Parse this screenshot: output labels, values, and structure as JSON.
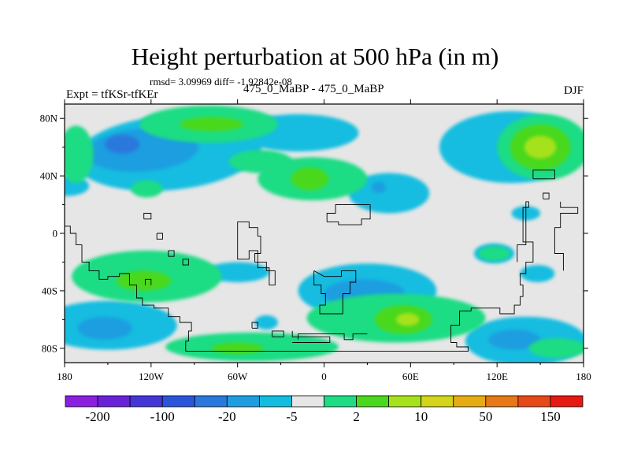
{
  "chart_data": {
    "type": "heatmap",
    "title": "Height perturbation at 500 hPa (in m)",
    "subtitle": "rmsd= 3.09969 diff= -1.92842e-08",
    "left_label": "Expt = tfKSr-tfKEr",
    "center_label": "475_0_MaBP - 475_0_MaBP",
    "right_label": "DJF",
    "xlim": [
      -180,
      180
    ],
    "ylim": [
      -90,
      90
    ],
    "x_ticks": [
      {
        "value": -180,
        "label": "180"
      },
      {
        "value": -120,
        "label": "120W"
      },
      {
        "value": -60,
        "label": "60W"
      },
      {
        "value": 0,
        "label": "0"
      },
      {
        "value": 60,
        "label": "60E"
      },
      {
        "value": 120,
        "label": "120E"
      },
      {
        "value": 180,
        "label": "180"
      }
    ],
    "y_ticks": [
      {
        "value": 80,
        "label": "80N"
      },
      {
        "value": 40,
        "label": "40N"
      },
      {
        "value": 0,
        "label": "0"
      },
      {
        "value": -40,
        "label": "40S"
      },
      {
        "value": -80,
        "label": "80S"
      }
    ],
    "colorbar": {
      "colors": [
        "#8a1fe0",
        "#6a22d8",
        "#4436d6",
        "#2a55da",
        "#2a78dc",
        "#1e9ee0",
        "#12bde0",
        "#e6e6e6",
        "#1fdc84",
        "#4ad81e",
        "#a6e21c",
        "#d4d41a",
        "#e6ac14",
        "#e67818",
        "#e64818",
        "#e61a10"
      ],
      "labels": [
        {
          "boundary": 1,
          "text": "-200"
        },
        {
          "boundary": 3,
          "text": "-100"
        },
        {
          "boundary": 5,
          "text": "-20"
        },
        {
          "boundary": 7,
          "text": "-5"
        },
        {
          "boundary": 9,
          "text": "2"
        },
        {
          "boundary": 11,
          "text": "10"
        },
        {
          "boundary": 13,
          "text": "50"
        },
        {
          "boundary": 15,
          "text": "150"
        }
      ]
    },
    "regions": [
      {
        "level": "-5",
        "color": "#12bde0",
        "lon": -108,
        "lat": 56,
        "width": 130,
        "height": 52,
        "rotate": -5
      },
      {
        "level": "-20",
        "color": "#1e9ee0",
        "lon": -126,
        "lat": 58,
        "width": 78,
        "height": 30,
        "rotate": -4
      },
      {
        "level": "-100",
        "color": "#2a78dc",
        "lon": -140,
        "lat": 62,
        "width": 24,
        "height": 13,
        "rotate": 0
      },
      {
        "level": "-5",
        "color": "#12bde0",
        "lon": -18,
        "lat": 70,
        "width": 84,
        "height": 26,
        "rotate": 0
      },
      {
        "level": "-5",
        "color": "#12bde0",
        "lon": 130,
        "lat": 60,
        "width": 100,
        "height": 50,
        "rotate": 0
      },
      {
        "level": "-5",
        "color": "#12bde0",
        "lon": -178,
        "lat": 33,
        "width": 30,
        "height": 14,
        "rotate": 0
      },
      {
        "level": "-5",
        "color": "#12bde0",
        "lon": 45,
        "lat": 28,
        "width": 56,
        "height": 28,
        "rotate": 0
      },
      {
        "level": "-20",
        "color": "#1e9ee0",
        "lon": 38,
        "lat": 32,
        "width": 10,
        "height": 8,
        "rotate": 0
      },
      {
        "level": "-5",
        "color": "#12bde0",
        "lon": 118,
        "lat": -14,
        "width": 28,
        "height": 14,
        "rotate": 0
      },
      {
        "level": "-5",
        "color": "#12bde0",
        "lon": 140,
        "lat": 14,
        "width": 20,
        "height": 10,
        "rotate": 0
      },
      {
        "level": "-5",
        "color": "#12bde0",
        "lon": 30,
        "lat": -40,
        "width": 96,
        "height": 38,
        "rotate": 0
      },
      {
        "level": "-20",
        "color": "#1e9ee0",
        "lon": 28,
        "lat": -42,
        "width": 56,
        "height": 20,
        "rotate": 0
      },
      {
        "level": "-5",
        "color": "#12bde0",
        "lon": -60,
        "lat": -27,
        "width": 44,
        "height": 14,
        "rotate": 0
      },
      {
        "level": "-5",
        "color": "#12bde0",
        "lon": 148,
        "lat": -28,
        "width": 24,
        "height": 12,
        "rotate": 0
      },
      {
        "level": "-5",
        "color": "#12bde0",
        "lon": -150,
        "lat": -64,
        "width": 96,
        "height": 34,
        "rotate": 0
      },
      {
        "level": "-20",
        "color": "#1e9ee0",
        "lon": -152,
        "lat": -66,
        "width": 38,
        "height": 16,
        "rotate": 0
      },
      {
        "level": "-5",
        "color": "#12bde0",
        "lon": 140,
        "lat": -75,
        "width": 84,
        "height": 34,
        "rotate": 0
      },
      {
        "level": "-20",
        "color": "#1e9ee0",
        "lon": 132,
        "lat": -74,
        "width": 36,
        "height": 14,
        "rotate": 0
      },
      {
        "level": "-5",
        "color": "#12bde0",
        "lon": -40,
        "lat": -62,
        "width": 16,
        "height": 10,
        "rotate": 0
      },
      {
        "level": "2",
        "color": "#1fdc84",
        "lon": -80,
        "lat": 76,
        "width": 96,
        "height": 26,
        "rotate": 0
      },
      {
        "level": "10",
        "color": "#4ad81e",
        "lon": -78,
        "lat": 76,
        "width": 44,
        "height": 10,
        "rotate": 0
      },
      {
        "level": "2",
        "color": "#1fdc84",
        "lon": -44,
        "lat": 50,
        "width": 44,
        "height": 16,
        "rotate": 0
      },
      {
        "level": "2",
        "color": "#1fdc84",
        "lon": -8,
        "lat": 38,
        "width": 76,
        "height": 30,
        "rotate": 0
      },
      {
        "level": "10",
        "color": "#4ad81e",
        "lon": -10,
        "lat": 38,
        "width": 26,
        "height": 16,
        "rotate": 0
      },
      {
        "level": "2",
        "color": "#1fdc84",
        "lon": -172,
        "lat": 55,
        "width": 24,
        "height": 40,
        "rotate": 0
      },
      {
        "level": "2",
        "color": "#1fdc84",
        "lon": -123,
        "lat": 31,
        "width": 22,
        "height": 12,
        "rotate": 0
      },
      {
        "level": "2",
        "color": "#1fdc84",
        "lon": 152,
        "lat": 60,
        "width": 64,
        "height": 46,
        "rotate": 0
      },
      {
        "level": "10",
        "color": "#4ad81e",
        "lon": 150,
        "lat": 60,
        "width": 42,
        "height": 32,
        "rotate": 0
      },
      {
        "level": "50",
        "color": "#a6e21c",
        "lon": 150,
        "lat": 60,
        "width": 22,
        "height": 16,
        "rotate": 0
      },
      {
        "level": "2",
        "color": "#1fdc84",
        "lon": -123,
        "lat": -30,
        "width": 104,
        "height": 36,
        "rotate": 0
      },
      {
        "level": "10",
        "color": "#4ad81e",
        "lon": -125,
        "lat": -33,
        "width": 38,
        "height": 14,
        "rotate": 0
      },
      {
        "level": "2",
        "color": "#1fdc84",
        "lon": 118,
        "lat": -14,
        "width": 22,
        "height": 10,
        "rotate": 0
      },
      {
        "level": "2",
        "color": "#1fdc84",
        "lon": 50,
        "lat": -59,
        "width": 124,
        "height": 34,
        "rotate": 0
      },
      {
        "level": "10",
        "color": "#4ad81e",
        "lon": 55,
        "lat": -60,
        "width": 40,
        "height": 20,
        "rotate": 0
      },
      {
        "level": "50",
        "color": "#a6e21c",
        "lon": 58,
        "lat": -60,
        "width": 16,
        "height": 9,
        "rotate": 0
      },
      {
        "level": "2",
        "color": "#1fdc84",
        "lon": -50,
        "lat": -79,
        "width": 120,
        "height": 20,
        "rotate": 0
      },
      {
        "level": "10",
        "color": "#4ad81e",
        "lon": -60,
        "lat": -80,
        "width": 36,
        "height": 8,
        "rotate": 0
      },
      {
        "level": "2",
        "color": "#1fdc84",
        "lon": 162,
        "lat": -80,
        "width": 40,
        "height": 14,
        "rotate": 0
      }
    ]
  }
}
